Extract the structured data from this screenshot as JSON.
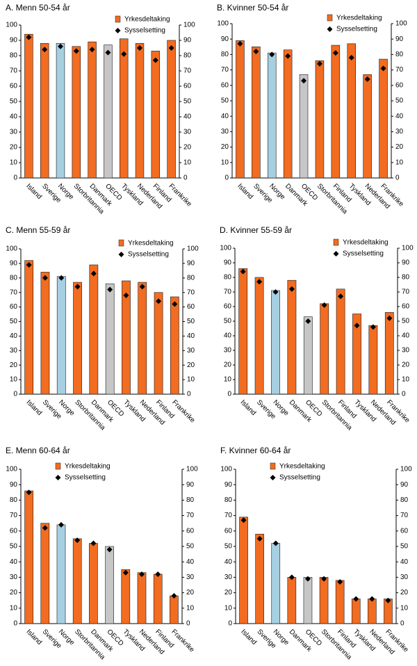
{
  "colors": {
    "yrkesdeltaking": "#f26c21",
    "norge": "#a6cfe2",
    "oecd": "#c6c6c6",
    "marker": "#000000",
    "bar_edge": "#1a1a1a"
  },
  "chart_data": [
    {
      "type": "bar",
      "title": "A. Menn 50-54 år",
      "categories": [
        "Island",
        "Sverige",
        "Norge",
        "Storbritannia",
        "Danmark",
        "OECD",
        "Tyskland",
        "Nederland",
        "Finland",
        "Frankrike"
      ],
      "series": [
        {
          "name": "Yrkesdeltaking",
          "kind": "bar",
          "values": [
            94,
            88,
            88,
            86,
            89,
            87,
            91,
            88,
            83,
            90
          ]
        },
        {
          "name": "Sysselsetting",
          "kind": "marker",
          "values": [
            92,
            84,
            86,
            83,
            84,
            82,
            81,
            85,
            77,
            85
          ]
        }
      ],
      "ylim": [
        0,
        100
      ],
      "yticks": [
        "0",
        "10",
        "20",
        "30",
        "40",
        "50",
        "60",
        "70",
        "80",
        "90",
        "100"
      ],
      "legend": "top-right"
    },
    {
      "type": "bar",
      "title": "B. Kvinner 50-54 år",
      "categories": [
        "Island",
        "Sverige",
        "Norge",
        "Danmark",
        "OECD",
        "Storbritannia",
        "Finland",
        "Tyskland",
        "Nederland",
        "Frankrike"
      ],
      "series": [
        {
          "name": "Yrkesdeltaking",
          "kind": "bar",
          "values": [
            89,
            85,
            81,
            83,
            67,
            76,
            86,
            87,
            67,
            77
          ]
        },
        {
          "name": "Sysselsetting",
          "kind": "marker",
          "values": [
            87,
            82,
            80,
            79,
            63,
            74,
            81,
            78,
            64,
            71
          ]
        }
      ],
      "ylim": [
        0,
        100
      ],
      "yticks": [
        "0",
        "10",
        "20",
        "30",
        "40",
        "50",
        "60",
        "70",
        "80",
        "90",
        "100"
      ],
      "legend": "top-right"
    },
    {
      "type": "bar",
      "title": "C. Menn 55-59 år",
      "categories": [
        "Island",
        "Sverige",
        "Norge",
        "Storbritannia",
        "Danmark",
        "OECD",
        "Tyskland",
        "Nederland",
        "Finland",
        "Frankrike"
      ],
      "series": [
        {
          "name": "Yrkesdeltaking",
          "kind": "bar",
          "values": [
            92,
            84,
            81,
            77,
            89,
            76,
            78,
            77,
            70,
            67
          ]
        },
        {
          "name": "Sysselsetting",
          "kind": "marker",
          "values": [
            89,
            80,
            80,
            74,
            83,
            72,
            68,
            74,
            64,
            62
          ]
        }
      ],
      "ylim": [
        0,
        100
      ],
      "yticks": [
        "0",
        "10",
        "20",
        "30",
        "40",
        "50",
        "60",
        "70",
        "80",
        "90",
        "100"
      ],
      "legend": "top-right"
    },
    {
      "type": "bar",
      "title": "D. Kvinner 55-59 år",
      "categories": [
        "Island",
        "Sverige",
        "Norge",
        "Danmark",
        "OECD",
        "Storbritannia",
        "Finland",
        "Tyskland",
        "Nederland",
        "Frankrike"
      ],
      "series": [
        {
          "name": "Yrkesdeltaking",
          "kind": "bar",
          "values": [
            86,
            80,
            71,
            78,
            53,
            62,
            72,
            55,
            47,
            56
          ]
        },
        {
          "name": "Sysselsetting",
          "kind": "marker",
          "values": [
            84,
            77,
            70,
            72,
            50,
            61,
            67,
            47,
            46,
            52
          ]
        }
      ],
      "ylim": [
        0,
        100
      ],
      "yticks": [
        "0",
        "10",
        "20",
        "30",
        "40",
        "50",
        "60",
        "70",
        "80",
        "90",
        "100"
      ],
      "legend": "top-right"
    },
    {
      "type": "bar",
      "title": "E. Menn 60-64 år",
      "categories": [
        "Island",
        "Sverige",
        "Norge",
        "Storbritannia",
        "Danmark",
        "OECD",
        "Tyskland",
        "Nederland",
        "Finland",
        "Frankrike"
      ],
      "series": [
        {
          "name": "Yrkesdeltaking",
          "kind": "bar",
          "values": [
            86,
            65,
            64,
            55,
            52,
            50,
            35,
            33,
            32,
            18
          ]
        },
        {
          "name": "Sysselsetting",
          "kind": "marker",
          "values": [
            85,
            62,
            64,
            54,
            52,
            48,
            33,
            32,
            32,
            18
          ]
        }
      ],
      "ylim": [
        0,
        100
      ],
      "yticks": [
        "0",
        "10",
        "20",
        "30",
        "40",
        "50",
        "60",
        "70",
        "80",
        "90",
        "100"
      ],
      "legend": "top-left"
    },
    {
      "type": "bar",
      "title": "F. Kvinner 60-64 år",
      "categories": [
        "Island",
        "Sverige",
        "Norge",
        "Danmark",
        "OECD",
        "Storbritannia",
        "Finland",
        "Tyskland",
        "Nederland",
        "Frankrike"
      ],
      "series": [
        {
          "name": "Yrkesdeltaking",
          "kind": "bar",
          "values": [
            69,
            58,
            52,
            30,
            30,
            30,
            28,
            16,
            16,
            16
          ]
        },
        {
          "name": "Sysselsetting",
          "kind": "marker",
          "values": [
            67,
            55,
            52,
            30,
            29,
            29,
            27,
            16,
            16,
            15
          ]
        }
      ],
      "ylim": [
        0,
        100
      ],
      "yticks": [
        "0",
        "10",
        "20",
        "30",
        "40",
        "50",
        "60",
        "70",
        "80",
        "90",
        "100"
      ],
      "legend": "top-left"
    }
  ]
}
